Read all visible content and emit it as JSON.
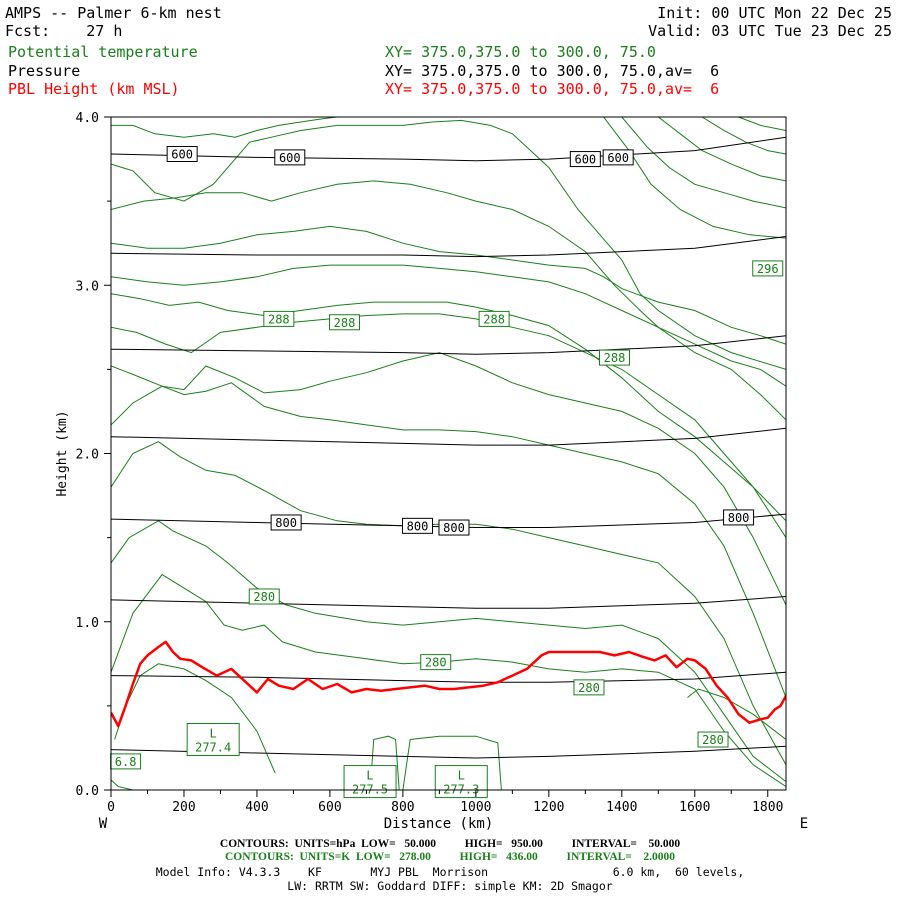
{
  "header": {
    "title": "AMPS -- Palmer 6-km nest",
    "fcst": "Fcst:    27 h",
    "init": "Init: 00 UTC Mon 22 Dec 25",
    "valid": "Valid: 03 UTC Tue 23 Dec 25",
    "field1": "Potential temperature",
    "field2": "Pressure",
    "field3": "PBL Height (km MSL)",
    "xy1": "XY= 375.0,375.0 to 300.0, 75.0",
    "xy2": "XY= 375.0,375.0 to 300.0, 75.0,av=  6",
    "xy3": "XY= 375.0,375.0 to 300.0, 75.0,av=  6"
  },
  "colors": {
    "theta": "#1a7f1a",
    "pressure": "#000000",
    "pbl": "#ff0000"
  },
  "chart_data": {
    "type": "line",
    "title": "AMPS -- Palmer 6-km nest",
    "xlabel": "Distance (km)",
    "ylabel": "Height (km)",
    "xlim": [
      0,
      1850
    ],
    "ylim": [
      0,
      4
    ],
    "xticks": [
      0,
      200,
      400,
      600,
      800,
      1000,
      1200,
      1400,
      1600,
      1800
    ],
    "yticks": [
      0.0,
      1.0,
      2.0,
      3.0,
      4.0
    ],
    "ytick_labels": [
      "0.0",
      "1.0",
      "2.0",
      "3.0",
      "4.0"
    ],
    "left_label": "W",
    "right_label": "E",
    "pressure_isobars": [
      {
        "x": [
          0,
          400,
          800,
          1000,
          1200,
          1600,
          1850
        ],
        "y": [
          0.24,
          0.22,
          0.2,
          0.19,
          0.2,
          0.23,
          0.26
        ]
      },
      {
        "x": [
          0,
          400,
          800,
          1000,
          1200,
          1600,
          1850
        ],
        "y": [
          0.68,
          0.67,
          0.65,
          0.64,
          0.64,
          0.66,
          0.7
        ]
      },
      {
        "x": [
          0,
          400,
          800,
          1000,
          1200,
          1600,
          1850
        ],
        "y": [
          1.13,
          1.11,
          1.09,
          1.08,
          1.08,
          1.11,
          1.15
        ]
      },
      {
        "x": [
          0,
          400,
          800,
          1000,
          1200,
          1600,
          1850
        ],
        "y": [
          1.61,
          1.59,
          1.57,
          1.56,
          1.56,
          1.59,
          1.64
        ]
      },
      {
        "x": [
          0,
          400,
          800,
          1000,
          1200,
          1600,
          1850
        ],
        "y": [
          2.1,
          2.08,
          2.06,
          2.05,
          2.05,
          2.09,
          2.15
        ]
      },
      {
        "x": [
          0,
          400,
          800,
          1000,
          1200,
          1600,
          1850
        ],
        "y": [
          2.62,
          2.61,
          2.6,
          2.59,
          2.6,
          2.64,
          2.7
        ]
      },
      {
        "x": [
          0,
          400,
          800,
          1000,
          1200,
          1600,
          1850
        ],
        "y": [
          3.19,
          3.18,
          3.18,
          3.17,
          3.18,
          3.22,
          3.29
        ]
      },
      {
        "x": [
          0,
          400,
          800,
          1000,
          1200,
          1600,
          1850
        ],
        "y": [
          3.78,
          3.76,
          3.75,
          3.74,
          3.75,
          3.8,
          3.88
        ]
      }
    ],
    "theta_isentropes": [
      {
        "x": [
          10,
          40,
          80,
          130,
          200,
          260,
          330,
          400,
          450
        ],
        "y": [
          0.3,
          0.5,
          0.68,
          0.75,
          0.72,
          0.65,
          0.55,
          0.35,
          0.1
        ]
      },
      {
        "x": [
          0,
          60,
          140,
          200,
          260,
          310,
          360,
          420,
          470,
          560,
          700,
          800,
          900,
          1000,
          1100,
          1200,
          1300,
          1400,
          1500,
          1600,
          1680,
          1760,
          1850
        ],
        "y": [
          0.7,
          1.05,
          1.28,
          1.2,
          1.12,
          0.98,
          0.95,
          0.98,
          0.88,
          0.82,
          0.78,
          0.75,
          0.76,
          0.78,
          0.76,
          0.72,
          0.7,
          0.72,
          0.7,
          0.6,
          0.35,
          0.15,
          0.02
        ]
      },
      {
        "x": [
          0,
          50,
          130,
          170,
          260,
          320,
          400,
          480,
          560,
          700,
          800,
          900,
          1000,
          1100,
          1200,
          1300,
          1400,
          1500,
          1600,
          1680,
          1760,
          1850
        ],
        "y": [
          1.35,
          1.5,
          1.6,
          1.54,
          1.45,
          1.35,
          1.2,
          1.1,
          1.05,
          1.0,
          0.98,
          1.0,
          1.02,
          1.0,
          0.98,
          0.96,
          0.98,
          0.9,
          0.7,
          0.45,
          0.2,
          0.05
        ]
      },
      {
        "x": [
          0,
          60,
          130,
          190,
          260,
          340,
          420,
          520,
          620,
          700,
          800,
          900,
          1000,
          1100,
          1200,
          1300,
          1400,
          1500,
          1600,
          1680,
          1760,
          1850
        ],
        "y": [
          1.8,
          2.0,
          2.07,
          1.98,
          1.9,
          1.87,
          1.78,
          1.66,
          1.6,
          1.58,
          1.57,
          1.58,
          1.58,
          1.55,
          1.5,
          1.45,
          1.4,
          1.35,
          1.15,
          0.9,
          0.5,
          0.15
        ]
      },
      {
        "x": [
          0,
          60,
          140,
          200,
          260,
          330,
          420,
          520,
          600,
          700,
          800,
          900,
          1000,
          1100,
          1200,
          1300,
          1400,
          1500,
          1600,
          1680,
          1760,
          1850
        ],
        "y": [
          2.17,
          2.3,
          2.4,
          2.35,
          2.37,
          2.42,
          2.28,
          2.22,
          2.2,
          2.17,
          2.14,
          2.14,
          2.13,
          2.1,
          2.05,
          2.0,
          1.95,
          1.88,
          1.7,
          1.45,
          1.05,
          0.55
        ]
      },
      {
        "x": [
          0,
          60,
          140,
          200,
          260,
          340,
          420,
          520,
          600,
          700,
          800,
          900,
          1000,
          1100,
          1200,
          1300,
          1400,
          1500,
          1600,
          1680,
          1760,
          1850
        ],
        "y": [
          2.52,
          2.47,
          2.4,
          2.38,
          2.52,
          2.45,
          2.36,
          2.38,
          2.43,
          2.48,
          2.55,
          2.6,
          2.52,
          2.42,
          2.35,
          2.3,
          2.25,
          2.15,
          2.0,
          1.8,
          1.5,
          1.1
        ]
      },
      {
        "x": [
          0,
          70,
          150,
          220,
          300,
          400,
          500,
          600,
          700,
          800,
          900,
          1000,
          1100,
          1200,
          1300,
          1400,
          1500,
          1600,
          1680,
          1760,
          1850
        ],
        "y": [
          2.75,
          2.72,
          2.65,
          2.6,
          2.72,
          2.75,
          2.78,
          2.8,
          2.82,
          2.83,
          2.83,
          2.8,
          2.75,
          2.7,
          2.6,
          2.5,
          2.35,
          2.2,
          2.0,
          1.8,
          1.5
        ]
      },
      {
        "x": [
          0,
          80,
          160,
          240,
          320,
          420,
          520,
          620,
          720,
          820,
          920,
          1000,
          1100,
          1200,
          1300,
          1400,
          1500,
          1600,
          1680,
          1760,
          1850
        ],
        "y": [
          2.95,
          2.92,
          2.88,
          2.9,
          2.85,
          2.82,
          2.85,
          2.88,
          2.9,
          2.9,
          2.9,
          2.87,
          2.82,
          2.76,
          2.62,
          2.45,
          2.25,
          2.1,
          1.95,
          1.8,
          1.6
        ]
      },
      {
        "x": [
          0,
          100,
          200,
          300,
          400,
          500,
          600,
          700,
          800,
          900,
          1000,
          1100,
          1200,
          1300,
          1400,
          1500,
          1600,
          1700,
          1780,
          1850
        ],
        "y": [
          3.05,
          3.02,
          3.0,
          3.02,
          3.05,
          3.1,
          3.12,
          3.12,
          3.12,
          3.1,
          3.08,
          3.05,
          3.02,
          2.95,
          2.85,
          2.75,
          2.6,
          2.5,
          2.35,
          2.2
        ]
      },
      {
        "x": [
          0,
          100,
          200,
          300,
          400,
          500,
          600,
          700,
          800,
          900,
          1000,
          1100,
          1200,
          1300,
          1350,
          1400,
          1500,
          1600,
          1700,
          1780,
          1850
        ],
        "y": [
          3.25,
          3.22,
          3.22,
          3.25,
          3.3,
          3.32,
          3.35,
          3.32,
          3.25,
          3.2,
          3.18,
          3.15,
          3.12,
          3.1,
          3.05,
          2.98,
          2.9,
          2.85,
          2.75,
          2.7,
          2.65
        ]
      },
      {
        "x": [
          0,
          90,
          180,
          260,
          360,
          440,
          520,
          620,
          720,
          820,
          920,
          1000,
          1100,
          1200,
          1300,
          1380,
          1450,
          1500,
          1600,
          1700,
          1780,
          1850
        ],
        "y": [
          3.45,
          3.5,
          3.52,
          3.55,
          3.55,
          3.5,
          3.55,
          3.6,
          3.62,
          3.6,
          3.55,
          3.5,
          3.45,
          3.35,
          3.2,
          3.0,
          2.85,
          2.75,
          2.65,
          2.55,
          2.5,
          2.4
        ]
      },
      {
        "x": [
          0,
          60,
          120,
          200,
          280,
          340,
          380,
          440,
          520,
          620,
          720,
          800,
          880,
          960,
          1040,
          1100,
          1200,
          1280,
          1340,
          1400,
          1450,
          1500,
          1600,
          1700,
          1850
        ],
        "y": [
          3.72,
          3.68,
          3.55,
          3.5,
          3.6,
          3.75,
          3.85,
          3.88,
          3.92,
          3.95,
          3.95,
          3.95,
          3.97,
          3.98,
          3.95,
          3.9,
          3.7,
          3.45,
          3.3,
          3.15,
          2.95,
          2.85,
          2.7,
          2.6,
          2.5
        ]
      },
      {
        "x": [
          0,
          60,
          120,
          200,
          280,
          340,
          400,
          460,
          520,
          580,
          620
        ],
        "y": [
          3.95,
          3.95,
          3.9,
          3.88,
          3.9,
          3.88,
          3.92,
          3.95,
          3.97,
          3.99,
          4.0
        ]
      },
      {
        "x": [
          1350,
          1420,
          1480,
          1560,
          1650,
          1750,
          1850
        ],
        "y": [
          4.0,
          3.8,
          3.6,
          3.45,
          3.35,
          3.3,
          3.28
        ]
      },
      {
        "x": [
          1400,
          1470,
          1530,
          1600,
          1680,
          1760,
          1850
        ],
        "y": [
          4.0,
          3.82,
          3.7,
          3.6,
          3.55,
          3.5,
          3.46
        ]
      },
      {
        "x": [
          1500,
          1560,
          1620,
          1700,
          1780,
          1850
        ],
        "y": [
          4.0,
          3.9,
          3.8,
          3.72,
          3.65,
          3.62
        ]
      },
      {
        "x": [
          1620,
          1680,
          1740,
          1800,
          1850
        ],
        "y": [
          4.0,
          3.92,
          3.85,
          3.8,
          3.78
        ]
      },
      {
        "x": [
          1720,
          1780,
          1850
        ],
        "y": [
          4.0,
          3.95,
          3.92
        ]
      },
      {
        "x": [
          0,
          20,
          60
        ],
        "y": [
          0.06,
          0.02,
          0.0
        ]
      },
      {
        "x": [
          710,
          720,
          760,
          780,
          790
        ],
        "y": [
          0.0,
          0.3,
          0.32,
          0.3,
          0.0
        ]
      },
      {
        "x": [
          800,
          820,
          900,
          1000,
          1060,
          1070
        ],
        "y": [
          0.0,
          0.3,
          0.32,
          0.32,
          0.28,
          0.0
        ]
      },
      {
        "x": [
          1580,
          1610,
          1680,
          1760,
          1850
        ],
        "y": [
          0.55,
          0.6,
          0.55,
          0.45,
          0.3
        ]
      }
    ],
    "pbl_height": {
      "x": [
        0,
        20,
        40,
        60,
        80,
        100,
        130,
        150,
        170,
        190,
        220,
        250,
        290,
        330,
        370,
        400,
        430,
        460,
        500,
        540,
        580,
        620,
        660,
        700,
        740,
        780,
        820,
        860,
        900,
        940,
        980,
        1020,
        1060,
        1100,
        1140,
        1180,
        1200,
        1250,
        1300,
        1340,
        1380,
        1420,
        1460,
        1490,
        1520,
        1550,
        1580,
        1600,
        1630,
        1660,
        1690,
        1720,
        1750,
        1780,
        1800,
        1820,
        1835,
        1850
      ],
      "y": [
        0.46,
        0.38,
        0.5,
        0.63,
        0.75,
        0.8,
        0.85,
        0.88,
        0.82,
        0.78,
        0.77,
        0.73,
        0.68,
        0.72,
        0.64,
        0.58,
        0.66,
        0.62,
        0.6,
        0.66,
        0.6,
        0.63,
        0.58,
        0.6,
        0.59,
        0.6,
        0.61,
        0.62,
        0.6,
        0.6,
        0.61,
        0.62,
        0.64,
        0.68,
        0.72,
        0.8,
        0.82,
        0.82,
        0.82,
        0.82,
        0.8,
        0.82,
        0.79,
        0.77,
        0.8,
        0.73,
        0.78,
        0.77,
        0.72,
        0.62,
        0.55,
        0.45,
        0.4,
        0.42,
        0.43,
        0.48,
        0.5,
        0.56
      ]
    },
    "pressure_labels": [
      {
        "x": 195,
        "y": 3.78,
        "text": "600"
      },
      {
        "x": 490,
        "y": 3.76,
        "text": "600"
      },
      {
        "x": 1300,
        "y": 3.75,
        "text": "600"
      },
      {
        "x": 1390,
        "y": 3.76,
        "text": "600"
      },
      {
        "x": 480,
        "y": 1.59,
        "text": "800"
      },
      {
        "x": 840,
        "y": 1.57,
        "text": "800"
      },
      {
        "x": 940,
        "y": 1.56,
        "text": "800"
      },
      {
        "x": 1720,
        "y": 1.62,
        "text": "800"
      }
    ],
    "theta_labels": [
      {
        "x": 460,
        "y": 2.8,
        "text": "288"
      },
      {
        "x": 640,
        "y": 2.78,
        "text": "288"
      },
      {
        "x": 1050,
        "y": 2.8,
        "text": "288"
      },
      {
        "x": 1380,
        "y": 2.57,
        "text": "288"
      },
      {
        "x": 1800,
        "y": 3.1,
        "text": "296"
      },
      {
        "x": 420,
        "y": 1.15,
        "text": "280"
      },
      {
        "x": 890,
        "y": 0.76,
        "text": "280"
      },
      {
        "x": 1310,
        "y": 0.61,
        "text": "280"
      },
      {
        "x": 1650,
        "y": 0.3,
        "text": "280"
      },
      {
        "x": 40,
        "y": 0.17,
        "text": "6.8"
      }
    ],
    "lows": [
      {
        "x": 280,
        "y": 0.3,
        "letter": "L",
        "value": "277.4"
      },
      {
        "x": 710,
        "y": 0.05,
        "letter": "L",
        "value": "277.5"
      },
      {
        "x": 960,
        "y": 0.05,
        "letter": "L",
        "value": "277.3"
      }
    ]
  },
  "footer": {
    "line1": "CONTOURS:  UNITS=hPa  LOW=   50.000          HIGH=   950.00          INTERVAL=    50.000",
    "line2": "CONTOURS:  UNITS=K  LOW=   278.00          HIGH=   436.00          INTERVAL=    2.0000",
    "line3": "Model Info: V4.3.3    KF       MYJ PBL  Morrison                  6.0 km,  60 levels,",
    "line4": "LW: RRTM SW: Goddard DIFF: simple KM: 2D Smagor"
  }
}
